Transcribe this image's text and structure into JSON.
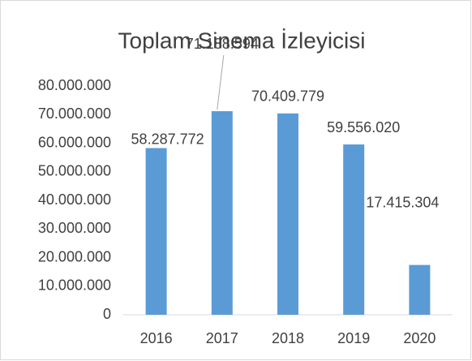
{
  "chart_data": {
    "type": "bar",
    "title": "Toplam Sinema İzleyicisi",
    "categories": [
      "2016",
      "2017",
      "2018",
      "2019",
      "2020"
    ],
    "values": [
      58287772,
      71188594,
      70409779,
      59556020,
      17415304
    ],
    "value_labels": [
      "58.287.772",
      "71.188.594",
      "70.409.779",
      "59.556.020",
      "17.415.304"
    ],
    "color": "#5b9bd5",
    "ylim": [
      0,
      80000000
    ],
    "yticks": [
      0,
      {
        "value": 10000000,
        "label": "10.000.000"
      },
      {
        "value": 20000000,
        "label": "20.000.000"
      },
      {
        "value": 30000000,
        "label": "30.000.000"
      },
      {
        "value": 40000000,
        "label": "40.000.000"
      },
      {
        "value": 50000000,
        "label": "50.000.000"
      },
      {
        "value": 60000000,
        "label": "60.000.000"
      },
      {
        "value": 70000000,
        "label": "70.000.000"
      },
      {
        "value": 80000000,
        "label": "80.000.000"
      }
    ],
    "grid": false
  }
}
